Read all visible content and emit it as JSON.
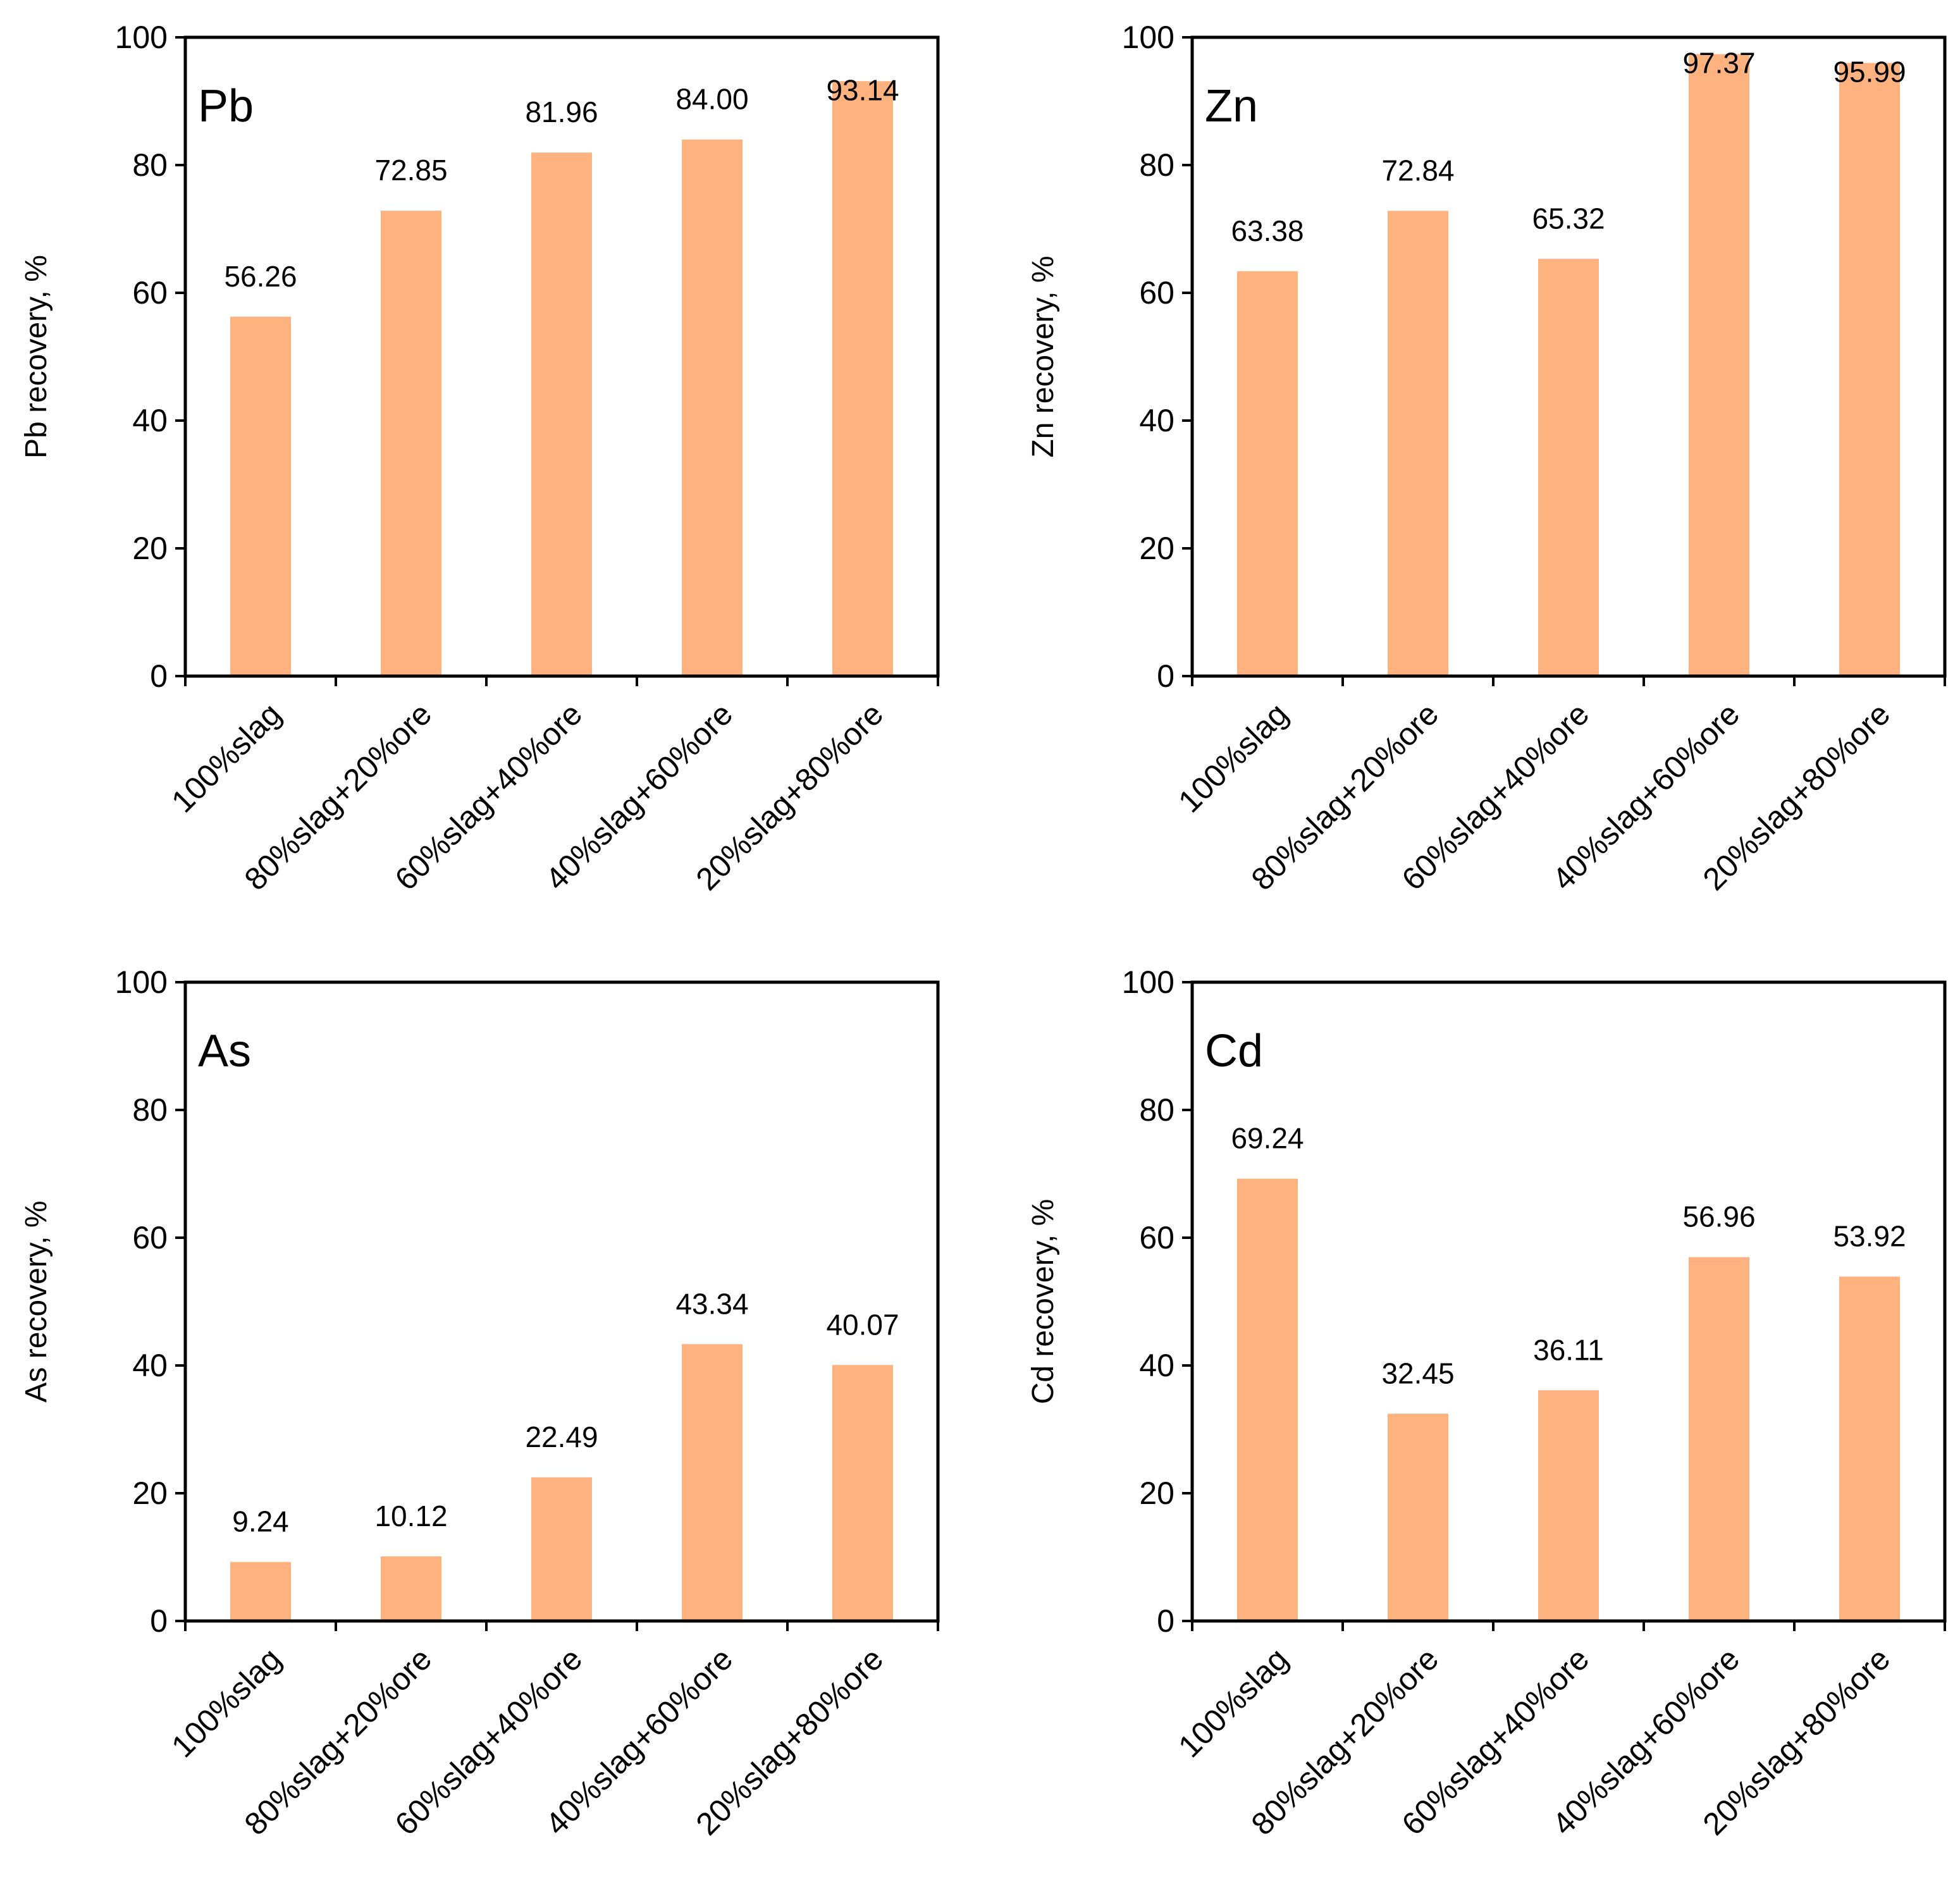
{
  "chart_data": [
    {
      "type": "bar",
      "panel_label": "Pb",
      "ylabel": "Pb recovery, %",
      "ylim": [
        0,
        100
      ],
      "yticks": [
        "0",
        "20",
        "40",
        "60",
        "80",
        "100"
      ],
      "categories": [
        "100%slag",
        "80%slag+20%ore",
        "60%slag+40%ore",
        "40%slag+60%ore",
        "20%slag+80%ore"
      ],
      "values": [
        56.26,
        72.85,
        81.96,
        84.0,
        93.14
      ],
      "labels": [
        "56.26",
        "72.85",
        "81.96",
        "84.00",
        "93.14"
      ],
      "bar_color": "#FDB27F"
    },
    {
      "type": "bar",
      "panel_label": "Zn",
      "ylabel": "Zn recovery, %",
      "ylim": [
        0,
        100
      ],
      "yticks": [
        "0",
        "20",
        "40",
        "60",
        "80",
        "100"
      ],
      "categories": [
        "100%slag",
        "80%slag+20%ore",
        "60%slag+40%ore",
        "40%slag+60%ore",
        "20%slag+80%ore"
      ],
      "values": [
        63.38,
        72.84,
        65.32,
        97.37,
        95.99
      ],
      "labels": [
        "63.38",
        "72.84",
        "65.32",
        "97.37",
        "95.99"
      ],
      "bar_color": "#FDB27F"
    },
    {
      "type": "bar",
      "panel_label": "As",
      "ylabel": "As recovery, %",
      "ylim": [
        0,
        100
      ],
      "yticks": [
        "0",
        "20",
        "40",
        "60",
        "80",
        "100"
      ],
      "categories": [
        "100%slag",
        "80%slag+20%ore",
        "60%slag+40%ore",
        "40%slag+60%ore",
        "20%slag+80%ore"
      ],
      "values": [
        9.24,
        10.12,
        22.49,
        43.34,
        40.07
      ],
      "labels": [
        "9.24",
        "10.12",
        "22.49",
        "43.34",
        "40.07"
      ],
      "bar_color": "#FDB27F"
    },
    {
      "type": "bar",
      "panel_label": "Cd",
      "ylabel": "Cd recovery, %",
      "ylim": [
        0,
        100
      ],
      "yticks": [
        "0",
        "20",
        "40",
        "60",
        "80",
        "100"
      ],
      "categories": [
        "100%slag",
        "80%slag+20%ore",
        "60%slag+40%ore",
        "40%slag+60%ore",
        "20%slag+80%ore"
      ],
      "values": [
        69.24,
        32.45,
        36.11,
        56.96,
        53.92
      ],
      "labels": [
        "69.24",
        "32.45",
        "36.11",
        "56.96",
        "53.92"
      ],
      "bar_color": "#FDB27F"
    }
  ]
}
